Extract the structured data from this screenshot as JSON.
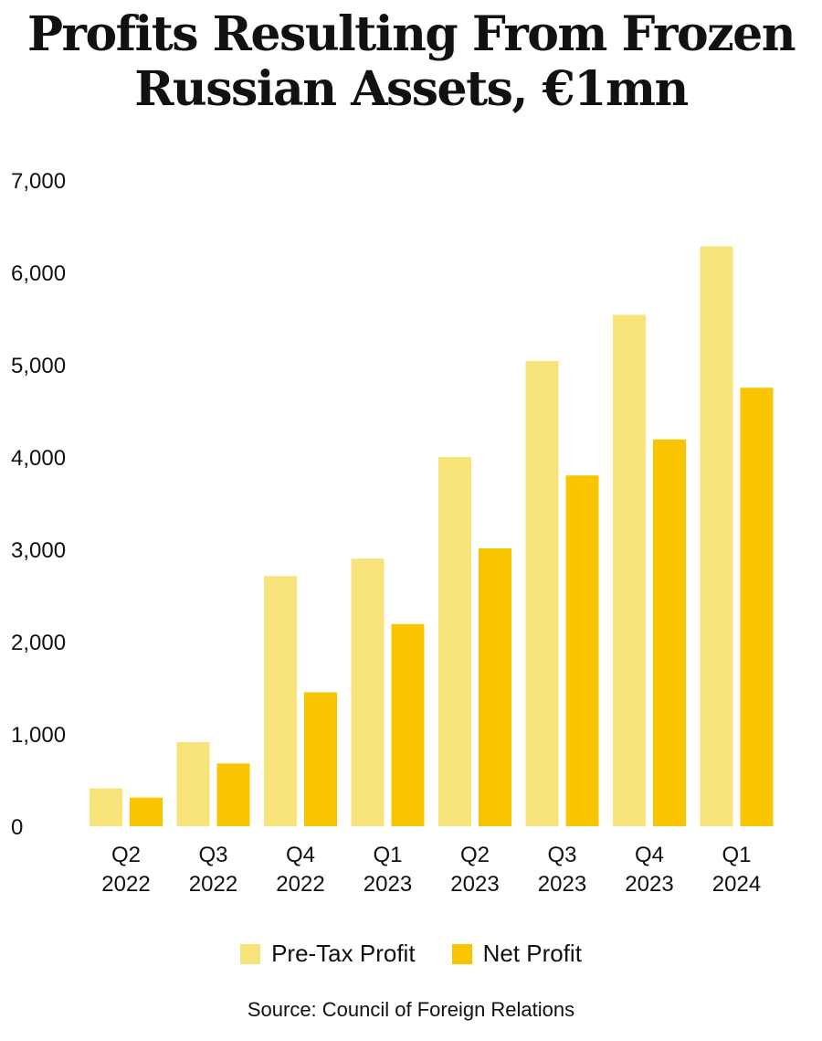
{
  "title_lines": [
    "Profits Resulting From Frozen",
    "Russian Assets, €1mn"
  ],
  "source": "Source: Council of Foreign Relations",
  "colors": {
    "pre_tax": "#F8E37A",
    "net": "#F9C400"
  },
  "chart_data": {
    "type": "bar",
    "title": "Profits Resulting From Frozen Russian Assets, €1mn",
    "categories": [
      [
        "Q2",
        "2022"
      ],
      [
        "Q3",
        "2022"
      ],
      [
        "Q4",
        "2022"
      ],
      [
        "Q1",
        "2023"
      ],
      [
        "Q2",
        "2023"
      ],
      [
        "Q3",
        "2023"
      ],
      [
        "Q4",
        "2023"
      ],
      [
        "Q1",
        "2024"
      ]
    ],
    "series": [
      {
        "name": "Pre-Tax Profit",
        "values": [
          410,
          910,
          2710,
          2900,
          4000,
          5040,
          5540,
          6280
        ]
      },
      {
        "name": "Net Profit",
        "values": [
          310,
          680,
          1450,
          2190,
          3010,
          3800,
          4190,
          4750
        ]
      }
    ],
    "ylim": [
      0,
      7000
    ],
    "yticks": [
      "0",
      "1,000",
      "2,000",
      "3,000",
      "4,000",
      "5,000",
      "6,000",
      "7,000"
    ],
    "grid": false,
    "legend": "bottom"
  }
}
